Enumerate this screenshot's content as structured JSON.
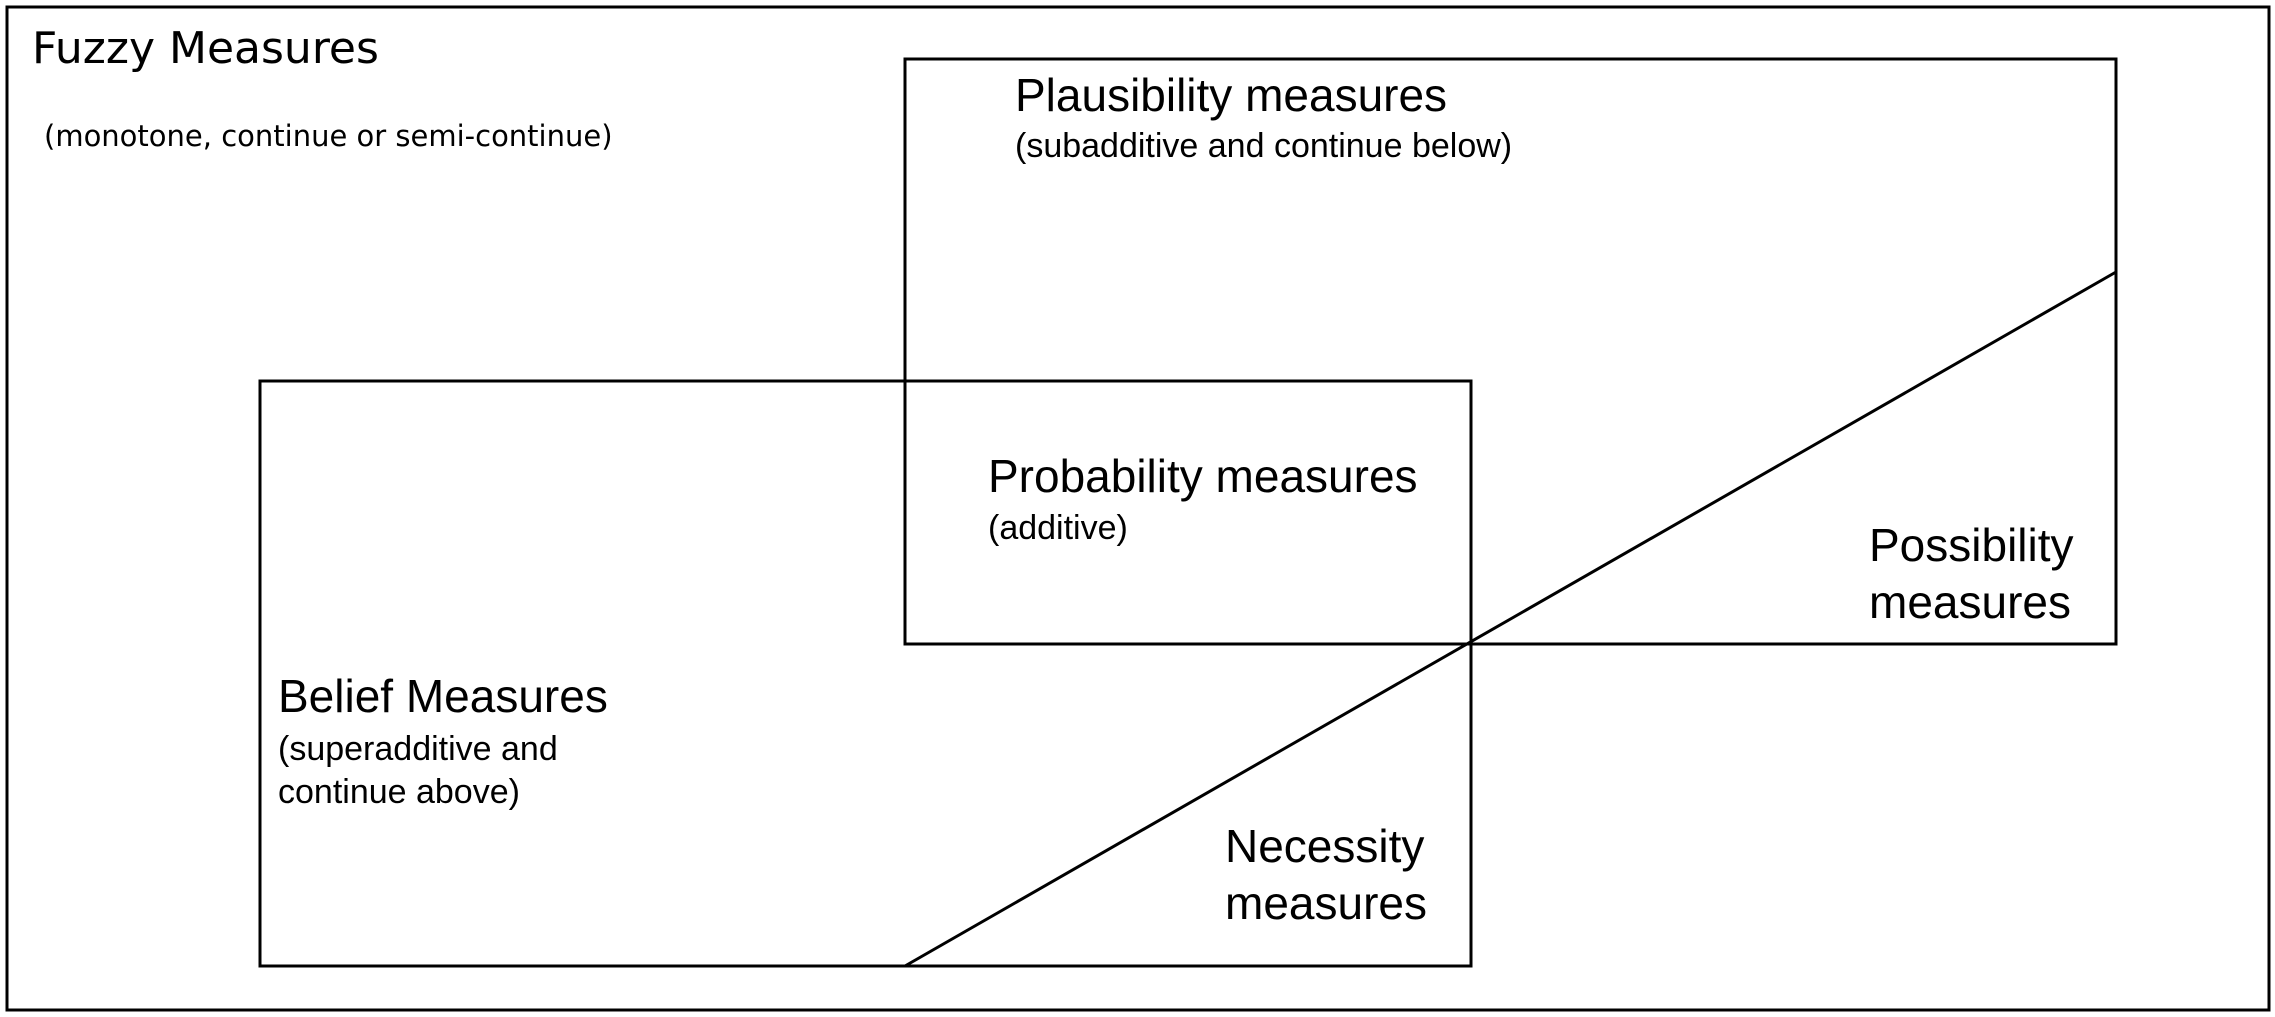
{
  "fuzzy": {
    "title": "Fuzzy Measures",
    "subtitle": "(monotone, continue or semi-continue)"
  },
  "plausibility": {
    "title": "Plausibility measures",
    "subtitle": "(subadditive and continue below)"
  },
  "probability": {
    "title": "Probability measures",
    "subtitle": "(additive)"
  },
  "belief": {
    "title": "Belief Measures",
    "subtitle_line1": "(superadditive and",
    "subtitle_line2": "continue above)"
  },
  "possibility": {
    "line1": "Possibility",
    "line2": "measures"
  },
  "necessity": {
    "line1": "Necessity",
    "line2": "measures"
  },
  "colors": {
    "stroke": "#000000",
    "background": "#ffffff"
  }
}
